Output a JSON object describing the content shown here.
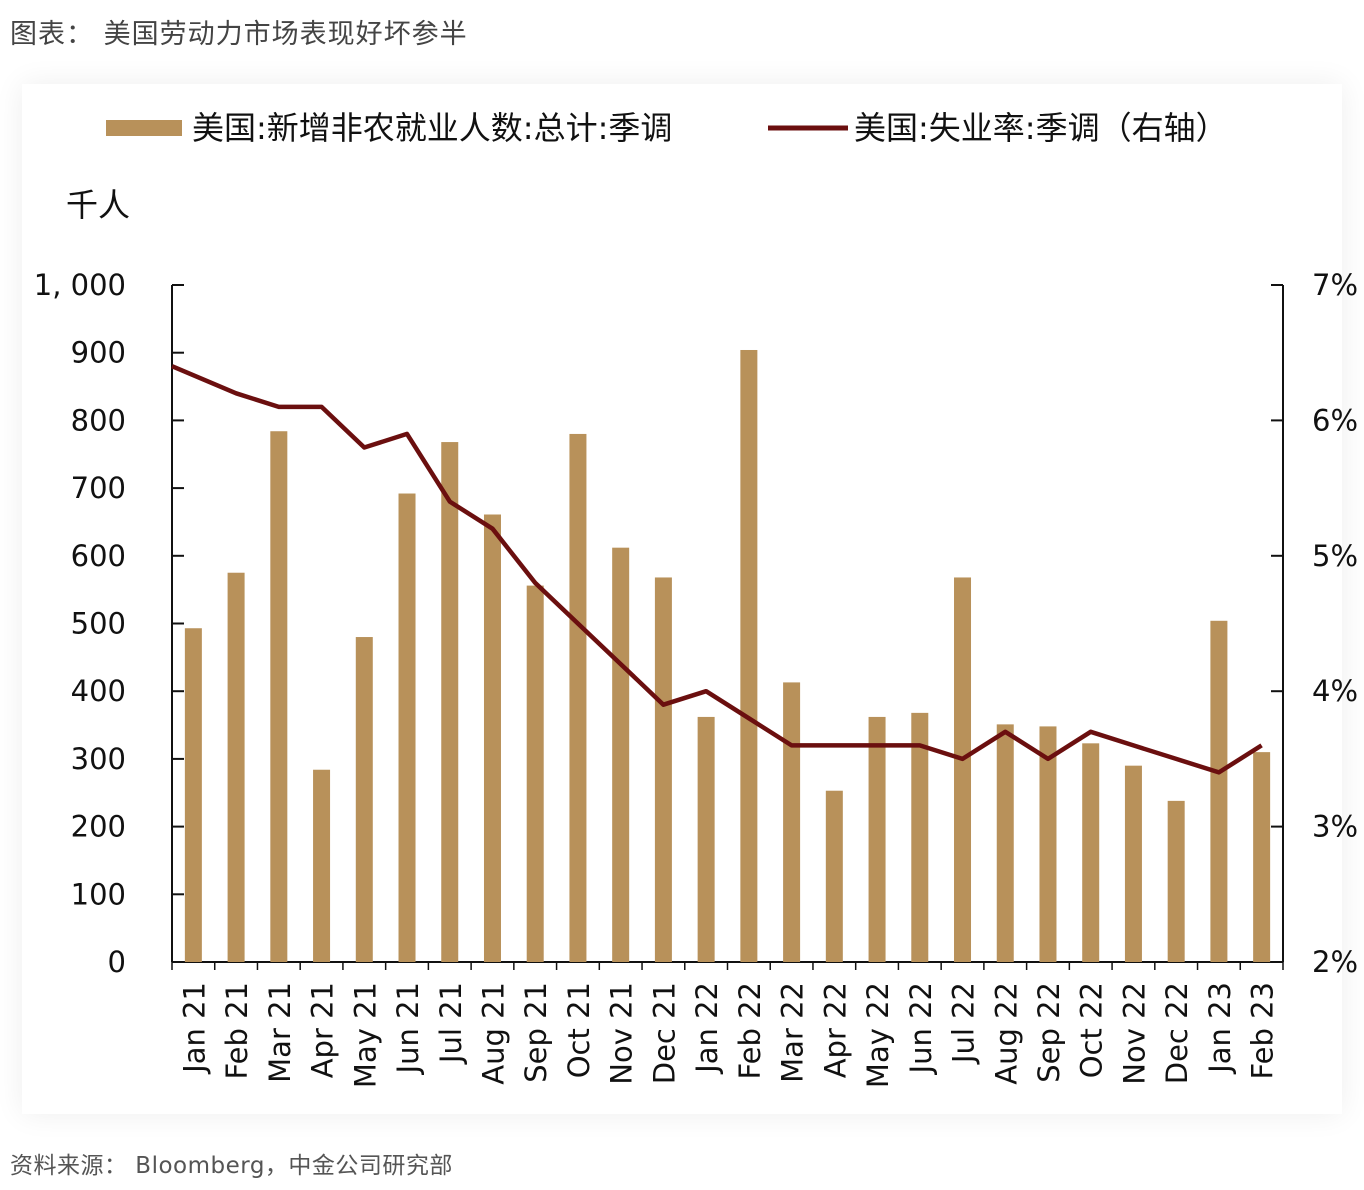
{
  "figure_title": "图表： 美国劳动力市场表现好坏参半",
  "source_note": "资料来源： Bloomberg，中金公司研究部",
  "colors": {
    "bar": "#B8915A",
    "line": "#6B0F0F",
    "axis": "#111111"
  },
  "chart_data": {
    "type": "bar+line",
    "left_axis_unit": "千人",
    "categories": [
      "Jan 21",
      "Feb 21",
      "Mar 21",
      "Apr 21",
      "May 21",
      "Jun 21",
      "Jul 21",
      "Aug 21",
      "Sep 21",
      "Oct 21",
      "Nov 21",
      "Dec 21",
      "Jan 22",
      "Feb 22",
      "Mar 22",
      "Apr 22",
      "May 22",
      "Jun 22",
      "Jul 22",
      "Aug 22",
      "Sep 22",
      "Oct 22",
      "Nov 22",
      "Dec 22",
      "Jan 23",
      "Feb 23"
    ],
    "y_left": {
      "min": 0,
      "max": 1000,
      "ticks": [
        0,
        100,
        200,
        300,
        400,
        500,
        600,
        700,
        800,
        900,
        1000
      ],
      "tick_labels": [
        "0",
        "100",
        "200",
        "300",
        "400",
        "500",
        "600",
        "700",
        "800",
        "900",
        "1, 000"
      ]
    },
    "y_right": {
      "min": 2,
      "max": 7,
      "ticks": [
        2,
        3,
        4,
        5,
        6,
        7
      ],
      "tick_labels": [
        "2%",
        "3%",
        "4%",
        "5%",
        "6%",
        "7%"
      ]
    },
    "legend": {
      "position": "top",
      "bar_label": "美国:新增非农就业人数:总计:季调",
      "line_label": "美国:失业率:季调（右轴）"
    },
    "series": [
      {
        "name": "美国:新增非农就业人数:总计:季调",
        "type": "bar",
        "axis": "left",
        "values": [
          493,
          575,
          784,
          284,
          480,
          692,
          768,
          661,
          556,
          780,
          612,
          568,
          362,
          904,
          413,
          253,
          362,
          368,
          568,
          351,
          348,
          323,
          290,
          238,
          504,
          310
        ]
      },
      {
        "name": "美国:失业率:季调（右轴）",
        "type": "line",
        "axis": "right",
        "values": [
          6.4,
          6.2,
          6.1,
          6.1,
          5.8,
          5.9,
          5.4,
          5.2,
          4.8,
          4.5,
          4.2,
          3.9,
          4.0,
          3.8,
          3.6,
          3.6,
          3.6,
          3.6,
          3.5,
          3.7,
          3.5,
          3.7,
          3.6,
          3.5,
          3.4,
          3.6
        ]
      }
    ]
  }
}
